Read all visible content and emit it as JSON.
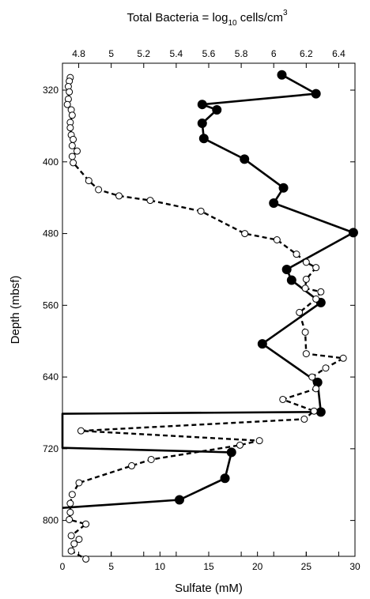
{
  "chart_data": {
    "type": "scatter",
    "title": "",
    "top_axis": {
      "label_main": "Total Bacteria = log",
      "label_sub": "10",
      "label_unit": " cells/cm",
      "label_sup": "3",
      "range": [
        4.7,
        6.5
      ],
      "ticks": [
        4.8,
        5,
        5.2,
        5.4,
        5.6,
        5.8,
        6,
        6.2,
        6.4
      ],
      "tick_labels": [
        "4.8",
        "5",
        "5.2",
        "5.4",
        "5.6",
        "5.8",
        "6",
        "6.2",
        "6.4"
      ]
    },
    "bottom_axis": {
      "label": "Sulfate (mM)",
      "range": [
        0,
        30
      ],
      "ticks": [
        0,
        5,
        10,
        15,
        20,
        25,
        30
      ],
      "tick_labels": [
        "0",
        "5",
        "10",
        "15",
        "20",
        "25",
        "30"
      ]
    },
    "y_axis": {
      "label": "Depth (mbsf)",
      "range": [
        290,
        840
      ],
      "inverted": true,
      "ticks": [
        320,
        400,
        480,
        560,
        640,
        720,
        800
      ],
      "tick_labels": [
        "320",
        "400",
        "480",
        "560",
        "640",
        "720",
        "800"
      ]
    },
    "grid": false,
    "legend": "none",
    "series": [
      {
        "axis": "top",
        "style": "solid-filled",
        "color": "#000000",
        "points": [
          {
            "x": 6.05,
            "depth": 303
          },
          {
            "x": 6.26,
            "depth": 324
          },
          {
            "x": 5.56,
            "depth": 336
          },
          {
            "x": 5.65,
            "depth": 342
          },
          {
            "x": 5.56,
            "depth": 357
          },
          {
            "x": 5.57,
            "depth": 374
          },
          {
            "x": 5.82,
            "depth": 397
          },
          {
            "x": 6.06,
            "depth": 429
          },
          {
            "x": 6.0,
            "depth": 446
          },
          {
            "x": 6.49,
            "depth": 479
          },
          {
            "x": 6.08,
            "depth": 520
          },
          {
            "x": 6.11,
            "depth": 532
          },
          {
            "x": 6.29,
            "depth": 557
          },
          {
            "x": 5.93,
            "depth": 603
          },
          {
            "x": 6.27,
            "depth": 646
          },
          {
            "x": 6.29,
            "depth": 679
          },
          {
            "x": 4.7,
            "depth": 681
          },
          {
            "x": 4.7,
            "depth": 719
          },
          {
            "x": 5.74,
            "depth": 724
          },
          {
            "x": 5.7,
            "depth": 753
          },
          {
            "x": 5.42,
            "depth": 777
          },
          {
            "x": 4.7,
            "depth": 786
          }
        ]
      },
      {
        "axis": "bottom",
        "style": "dashed-open",
        "color": "#000000",
        "points": [
          {
            "x": 0.8,
            "depth": 306
          },
          {
            "x": 0.7,
            "depth": 310
          },
          {
            "x": 0.6,
            "depth": 316
          },
          {
            "x": 0.7,
            "depth": 322
          },
          {
            "x": 0.6,
            "depth": 330
          },
          {
            "x": 0.5,
            "depth": 336
          },
          {
            "x": 0.9,
            "depth": 342
          },
          {
            "x": 1.0,
            "depth": 348
          },
          {
            "x": 0.8,
            "depth": 356
          },
          {
            "x": 0.8,
            "depth": 362
          },
          {
            "x": 0.9,
            "depth": 370
          },
          {
            "x": 1.1,
            "depth": 375
          },
          {
            "x": 1.0,
            "depth": 382
          },
          {
            "x": 1.5,
            "depth": 388
          },
          {
            "x": 1.0,
            "depth": 394
          },
          {
            "x": 1.1,
            "depth": 401
          },
          {
            "x": 2.7,
            "depth": 421
          },
          {
            "x": 3.7,
            "depth": 431
          },
          {
            "x": 5.8,
            "depth": 438
          },
          {
            "x": 9.0,
            "depth": 443
          },
          {
            "x": 14.2,
            "depth": 455
          },
          {
            "x": 18.7,
            "depth": 480
          },
          {
            "x": 22.0,
            "depth": 487
          },
          {
            "x": 24.0,
            "depth": 503
          },
          {
            "x": 25.0,
            "depth": 512
          },
          {
            "x": 26.0,
            "depth": 518
          },
          {
            "x": 25.0,
            "depth": 531
          },
          {
            "x": 24.9,
            "depth": 541
          },
          {
            "x": 26.5,
            "depth": 545
          },
          {
            "x": 26.0,
            "depth": 553
          },
          {
            "x": 24.3,
            "depth": 568
          },
          {
            "x": 24.9,
            "depth": 590
          },
          {
            "x": 25.0,
            "depth": 614
          },
          {
            "x": 28.8,
            "depth": 619
          },
          {
            "x": 27.0,
            "depth": 630
          },
          {
            "x": 25.6,
            "depth": 640
          },
          {
            "x": 26.0,
            "depth": 653
          },
          {
            "x": 22.6,
            "depth": 665
          },
          {
            "x": 25.8,
            "depth": 678
          },
          {
            "x": 24.8,
            "depth": 687
          },
          {
            "x": 1.9,
            "depth": 700
          },
          {
            "x": 20.2,
            "depth": 711
          },
          {
            "x": 18.2,
            "depth": 716
          },
          {
            "x": 9.1,
            "depth": 732
          },
          {
            "x": 7.1,
            "depth": 739
          },
          {
            "x": 1.7,
            "depth": 758
          },
          {
            "x": 1.0,
            "depth": 771
          },
          {
            "x": 0.8,
            "depth": 781
          },
          {
            "x": 0.8,
            "depth": 791
          },
          {
            "x": 0.7,
            "depth": 799
          },
          {
            "x": 2.4,
            "depth": 804
          },
          {
            "x": 0.9,
            "depth": 817
          },
          {
            "x": 1.7,
            "depth": 821
          },
          {
            "x": 1.2,
            "depth": 826
          },
          {
            "x": 0.9,
            "depth": 834
          },
          {
            "x": 2.4,
            "depth": 843
          }
        ]
      }
    ]
  }
}
